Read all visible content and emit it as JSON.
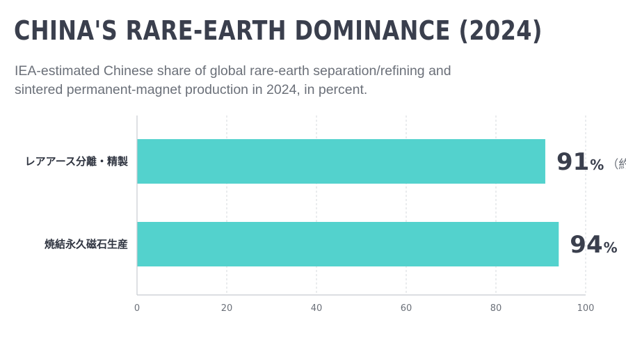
{
  "header": {
    "title": "CHINA'S RARE-EARTH DOMINANCE (2024)",
    "subtitle": "IEA-estimated Chinese share of global rare-earth separation/refining and sintered permanent-magnet production in 2024, in percent."
  },
  "chart_data": {
    "type": "bar",
    "orientation": "horizontal",
    "categories": [
      "レアアース分離・精製",
      "焼結永久磁石生産"
    ],
    "values": [
      91,
      94
    ],
    "value_display": [
      "91",
      "94"
    ],
    "value_unit": "%",
    "value_note": "（約）",
    "xlim": [
      0,
      100
    ],
    "xticks": [
      0,
      20,
      40,
      60,
      80,
      100
    ],
    "grid": "vertical-dashed",
    "bar_color": "#53d2cd",
    "axis_color": "#c8cbd0",
    "title": "CHINA'S RARE-EARTH DOMINANCE (2024)"
  }
}
